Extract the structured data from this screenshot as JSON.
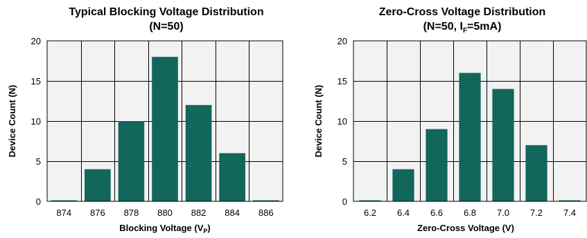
{
  "chart_data": [
    {
      "type": "bar",
      "title": "Typical Blocking Voltage Distribution",
      "subtitle": "(N=50)",
      "xlabel": "Blocking Voltage (V",
      "xlabel_subscript": "P",
      "xlabel_suffix": ")",
      "ylabel": "Device Count (N)",
      "xlim": [
        873,
        887
      ],
      "ylim": [
        0,
        20
      ],
      "xticks": [
        "874",
        "876",
        "878",
        "880",
        "882",
        "884",
        "886"
      ],
      "xtick_values": [
        874,
        876,
        878,
        880,
        882,
        884,
        886
      ],
      "yticks": [
        0,
        5,
        10,
        15,
        20
      ],
      "categories": [
        "874",
        "876",
        "878",
        "880",
        "882",
        "884",
        "886"
      ],
      "x": [
        874,
        876,
        878,
        880,
        882,
        884,
        886
      ],
      "values": [
        0,
        4,
        10,
        18,
        12,
        6,
        0
      ],
      "bar_width": 1.55,
      "grid": true,
      "bar_color": "#12665b",
      "background_color": "#f2f2f2"
    },
    {
      "type": "bar",
      "title": "Zero-Cross Voltage Distribution",
      "subtitle_prefix": "(N=50, I",
      "subtitle_subscript": "F",
      "subtitle_suffix": "=5mA)",
      "xlabel": "Zero-Cross Voltage (V)",
      "ylabel": "Device Count (N)",
      "xlim": [
        6.1,
        7.5
      ],
      "ylim": [
        0,
        20
      ],
      "xticks": [
        "6.2",
        "6.4",
        "6.6",
        "6.8",
        "7.0",
        "7.2",
        "7.4"
      ],
      "xtick_values": [
        6.2,
        6.4,
        6.6,
        6.8,
        7.0,
        7.2,
        7.4
      ],
      "yticks": [
        0,
        5,
        10,
        15,
        20
      ],
      "categories": [
        "6.2",
        "6.4",
        "6.6",
        "6.8",
        "7.0",
        "7.2",
        "7.4"
      ],
      "x": [
        6.2,
        6.4,
        6.6,
        6.8,
        7.0,
        7.2,
        7.4
      ],
      "values": [
        0,
        4,
        9,
        16,
        14,
        7,
        0
      ],
      "bar_width": 0.13,
      "grid": true,
      "bar_color": "#12665b",
      "background_color": "#f2f2f2"
    }
  ]
}
